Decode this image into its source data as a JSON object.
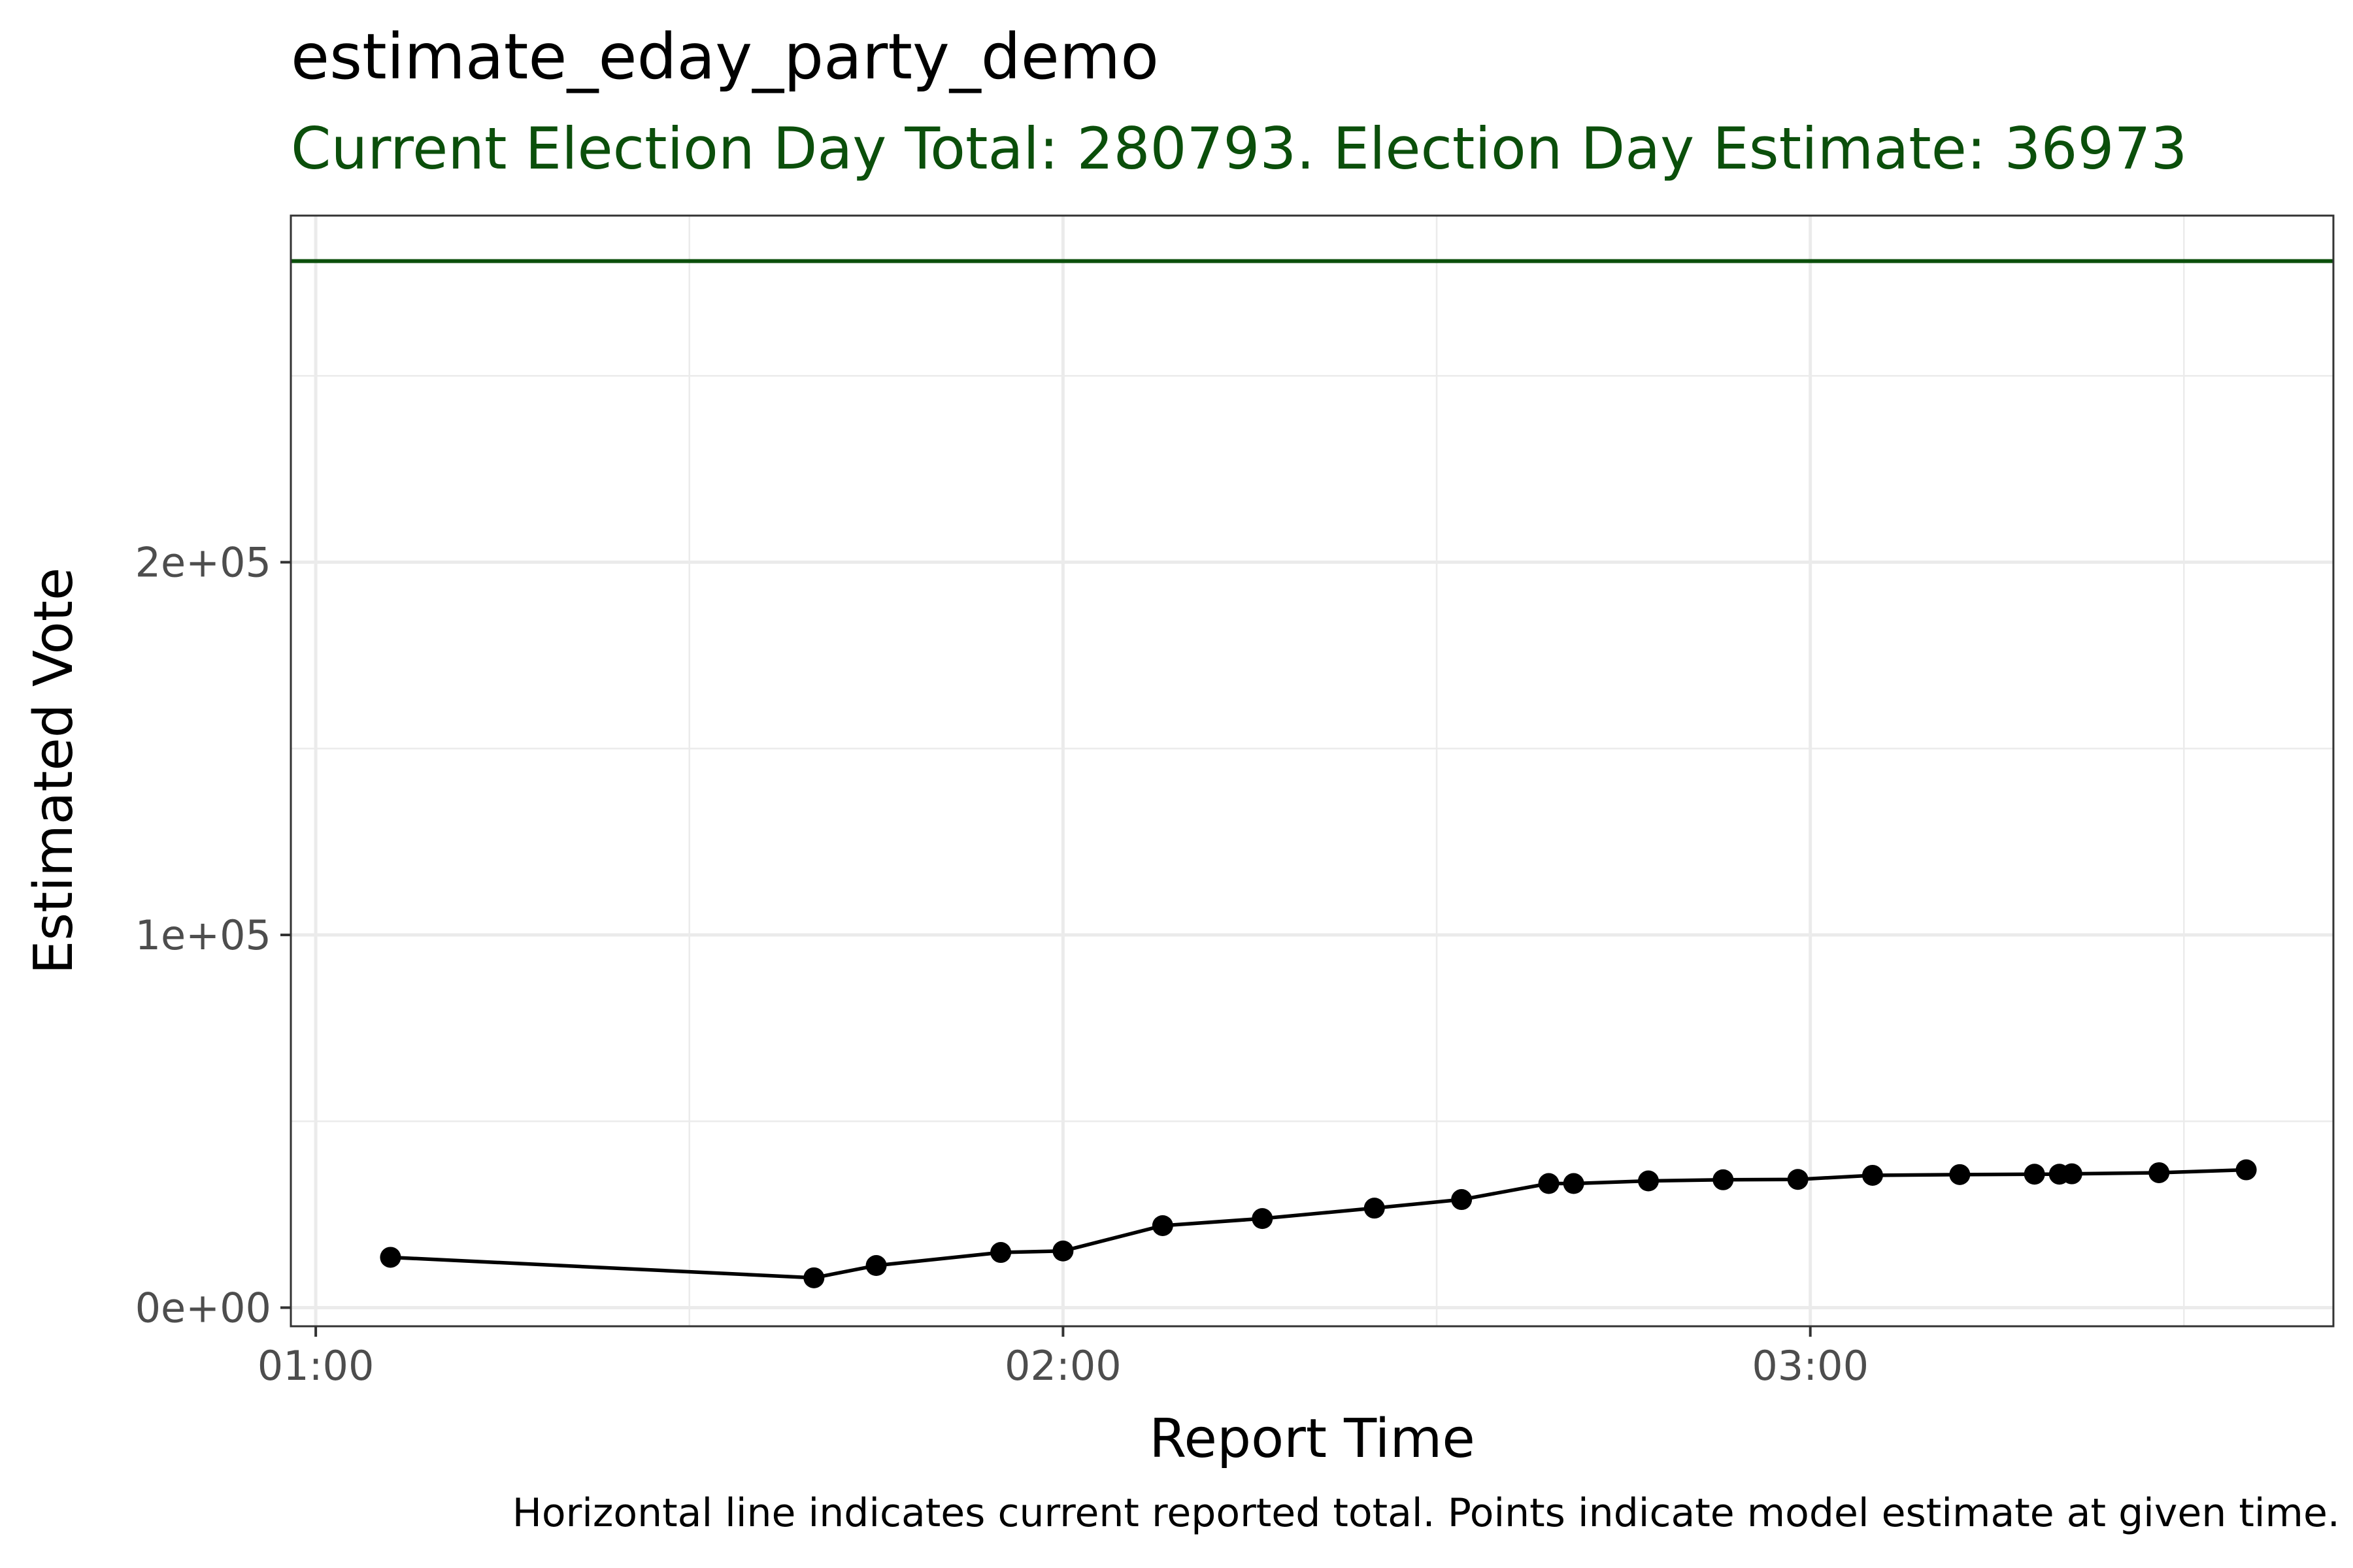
{
  "title": "estimate_eday_party_demo",
  "subtitle": "Current Election Day Total: 280793. Election Day Estimate: 36973",
  "caption": "Horizontal line indicates current reported total. Points indicate model estimate at given time.",
  "colors": {
    "subtitle": "#0b4f0b",
    "reference_line": "#0b4f0b",
    "series": "#000000",
    "grid": "#ebebeb",
    "panel_border": "#333333"
  },
  "chart_data": {
    "type": "line",
    "title": "estimate_eday_party_demo",
    "subtitle": "Current Election Day Total: 280793. Election Day Estimate: 36973",
    "xlabel": "Report Time",
    "ylabel": "Estimated Vote",
    "xlim": [
      "00:58",
      "03:42"
    ],
    "ylim": [
      -5000,
      293000
    ],
    "x_ticks": [
      "01:00",
      "02:00",
      "03:00"
    ],
    "y_ticks": [
      {
        "value": 0,
        "label": "0e+00"
      },
      {
        "value": 100000,
        "label": "1e+05"
      },
      {
        "value": 200000,
        "label": "2e+05"
      }
    ],
    "grid": true,
    "legend": "none",
    "reference_line": {
      "y": 280793
    },
    "series": [
      {
        "x": [
          "01:06",
          "01:40",
          "01:45",
          "01:55",
          "02:00",
          "02:08",
          "02:16",
          "02:25",
          "02:32",
          "02:39",
          "02:41",
          "02:47",
          "02:53",
          "02:59",
          "03:05",
          "03:12",
          "03:18",
          "03:20",
          "03:21",
          "03:28",
          "03:35"
        ],
        "values": [
          13500,
          8000,
          11300,
          14800,
          15200,
          22000,
          23900,
          26700,
          29000,
          33300,
          33300,
          34000,
          34300,
          34400,
          35500,
          35700,
          35800,
          35800,
          35900,
          36200,
          36973
        ]
      }
    ]
  }
}
